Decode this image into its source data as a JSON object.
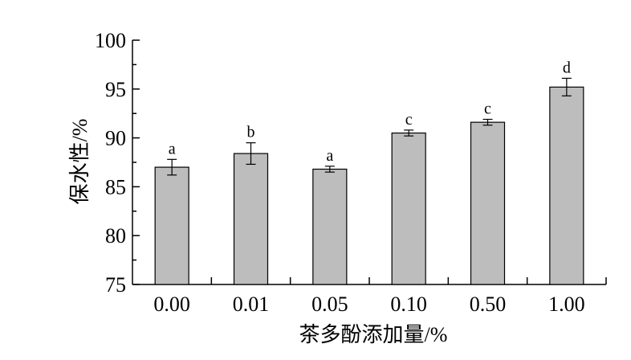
{
  "chart_data": {
    "type": "bar",
    "title": "",
    "xlabel": "茶多酚添加量/%",
    "ylabel": "保水性/%",
    "categories": [
      "0.00",
      "0.01",
      "0.05",
      "0.10",
      "0.50",
      "1.00"
    ],
    "values": [
      87.0,
      88.4,
      86.8,
      90.5,
      91.6,
      95.2
    ],
    "errors": [
      0.8,
      1.1,
      0.3,
      0.3,
      0.3,
      0.9
    ],
    "significance": [
      "a",
      "b",
      "a",
      "c",
      "c",
      "d"
    ],
    "ylim": [
      75,
      100
    ],
    "yticks": [
      75,
      80,
      85,
      90,
      95,
      100
    ],
    "grid": false,
    "colors": {
      "bar_fill": "#bdbdbd",
      "bar_stroke": "#000000",
      "axis": "#000000"
    }
  }
}
